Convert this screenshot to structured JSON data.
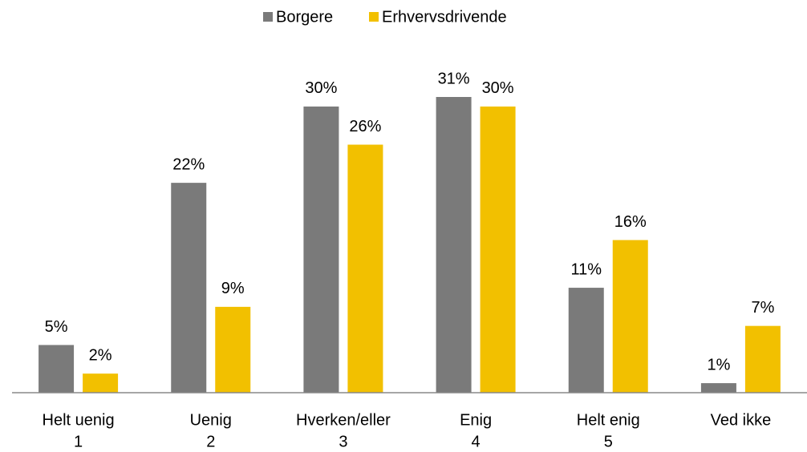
{
  "chart_data": {
    "type": "bar",
    "categories": [
      [
        "Helt uenig",
        "1"
      ],
      [
        "Uenig",
        "2"
      ],
      [
        "Hverken/eller",
        "3"
      ],
      [
        "Enig",
        "4"
      ],
      [
        "Helt enig",
        "5"
      ],
      [
        "Ved ikke"
      ]
    ],
    "series": [
      {
        "name": "Borgere",
        "color": "#7a7a7a",
        "values": [
          5,
          22,
          30,
          31,
          11,
          1
        ],
        "value_labels": [
          "5%",
          "22%",
          "30%",
          "31%",
          "11%",
          "1%"
        ]
      },
      {
        "name": "Erhvervsdrivende",
        "color": "#f2c000",
        "values": [
          2,
          9,
          26,
          30,
          16,
          7
        ],
        "value_labels": [
          "2%",
          "9%",
          "26%",
          "30%",
          "16%",
          "7%"
        ]
      }
    ],
    "legend": "top"
  }
}
